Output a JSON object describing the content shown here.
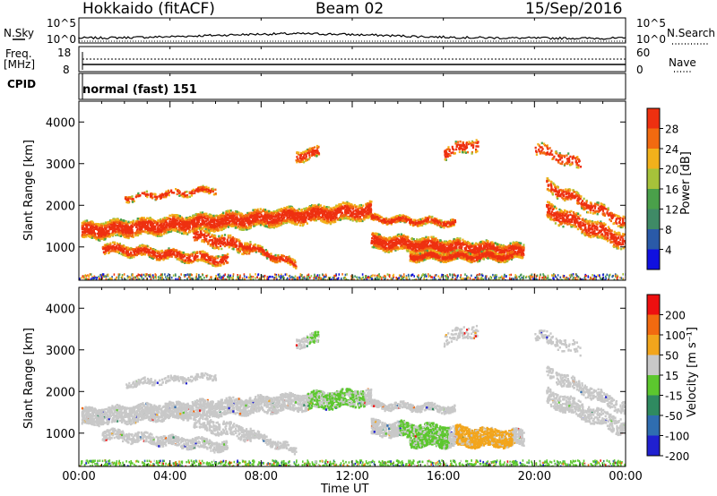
{
  "header": {
    "station": "Hokkaido (fitACF)",
    "beam": "Beam 02",
    "date": "15/Sep/2016"
  },
  "nsky_panel": {
    "left_label": "N.Sky",
    "left_ticks": [
      "10^5",
      "10^0"
    ],
    "right_label": "N.Search",
    "right_ticks": [
      "10^5",
      "10^0"
    ]
  },
  "freq_panel": {
    "left_label_line1": "Freq.",
    "left_label_line2": "[MHz]",
    "left_ticks": [
      "18",
      "8"
    ],
    "right_label": "Nave",
    "right_ticks": [
      "60",
      "0"
    ]
  },
  "cpid_panel": {
    "label": "CPID",
    "mode_text": "normal (fast) 151"
  },
  "x_axis": {
    "title": "Time UT",
    "ticks": [
      "00:00",
      "04:00",
      "08:00",
      "12:00",
      "16:00",
      "20:00",
      "00:00"
    ]
  },
  "chart_data": [
    {
      "type": "heatmap",
      "name": "power",
      "ylabel": "Slant Range [km]",
      "yticks": [
        "1000",
        "2000",
        "3000",
        "4000"
      ],
      "xlim": [
        0,
        24
      ],
      "ylim": [
        200,
        4500
      ],
      "colorbar": {
        "label": "Power [dB]",
        "ticks": [
          "4",
          "8",
          "12",
          "16",
          "20",
          "24",
          "28"
        ],
        "colors": [
          "#1010e0",
          "#2a5aa8",
          "#3f8a66",
          "#4aa04a",
          "#a6c23a",
          "#f2b11b",
          "#f26a10",
          "#ee3010"
        ]
      }
    },
    {
      "type": "heatmap",
      "name": "velocity",
      "ylabel": "Slant Range [km]",
      "yticks": [
        "1000",
        "2000",
        "3000",
        "4000"
      ],
      "xlim": [
        0,
        24
      ],
      "ylim": [
        200,
        4500
      ],
      "colorbar": {
        "label": "Velocity [m s⁻¹]",
        "ticks": [
          "200",
          "100",
          "50",
          "15",
          "-15",
          "-50",
          "-100",
          "-200"
        ],
        "colors": [
          "#2020d0",
          "#2f6db0",
          "#2f8a60",
          "#5cc72e",
          "#c8c8c8",
          "#f2a51c",
          "#f26a10",
          "#ee1010"
        ]
      }
    }
  ]
}
